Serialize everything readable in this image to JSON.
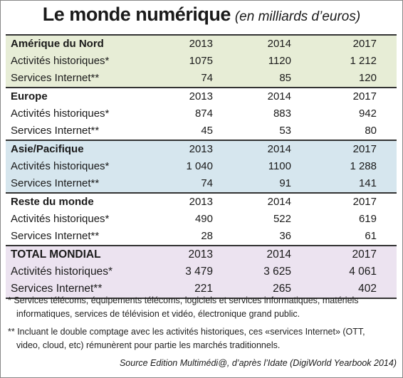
{
  "header": {
    "title": "Le monde numérique",
    "subtitle": "(en milliards d’euros)"
  },
  "table": {
    "sections": [
      {
        "name": "Amérique du Nord",
        "years": [
          "2013",
          "2014",
          "2017"
        ],
        "rows": [
          {
            "label": "Activités historiques*",
            "values": [
              "1075",
              "1120",
              "1 212"
            ]
          },
          {
            "label": "Services Internet**",
            "values": [
              "74",
              "85",
              "120"
            ]
          }
        ]
      },
      {
        "name": "Europe",
        "years": [
          "2013",
          "2014",
          "2017"
        ],
        "rows": [
          {
            "label": "Activités historiques*",
            "values": [
              "874",
              "883",
              "942"
            ]
          },
          {
            "label": "Services Internet**",
            "values": [
              "45",
              "53",
              "80"
            ]
          }
        ]
      },
      {
        "name": "Asie/Pacifique",
        "years": [
          "2013",
          "2014",
          "2017"
        ],
        "rows": [
          {
            "label": "Activités historiques*",
            "values": [
              "1 040",
              "1100",
              "1 288"
            ]
          },
          {
            "label": "Services Internet**",
            "values": [
              "74",
              "91",
              "141"
            ]
          }
        ]
      },
      {
        "name": "Reste du monde",
        "years": [
          "2013",
          "2014",
          "2017"
        ],
        "rows": [
          {
            "label": "Activités historiques*",
            "values": [
              "490",
              "522",
              "619"
            ]
          },
          {
            "label": "Services Internet**",
            "values": [
              "28",
              "36",
              "61"
            ]
          }
        ]
      },
      {
        "name": "TOTAL MONDIAL",
        "years": [
          "2013",
          "2014",
          "2017"
        ],
        "rows": [
          {
            "label": "Activités historiques*",
            "values": [
              "3 479",
              "3 625",
              "4 061"
            ]
          },
          {
            "label": "Services Internet**",
            "values": [
              "221",
              "265",
              "402"
            ]
          }
        ]
      }
    ]
  },
  "footnotes": [
    "* Services télécoms, équipements télécoms, logiciels et services informatiques, matériels informatiques, services de télévision et vidéo, électronique grand public.",
    "** Incluant le double comptage avec les activités historiques, ces «services Internet» (OTT, video, cloud, etc) rémunèrent pour partie les marchés traditionnels."
  ],
  "source": "Source  Edition Multimédi@, d’après l’Idate (DigiWorld Yearbook 2014)"
}
